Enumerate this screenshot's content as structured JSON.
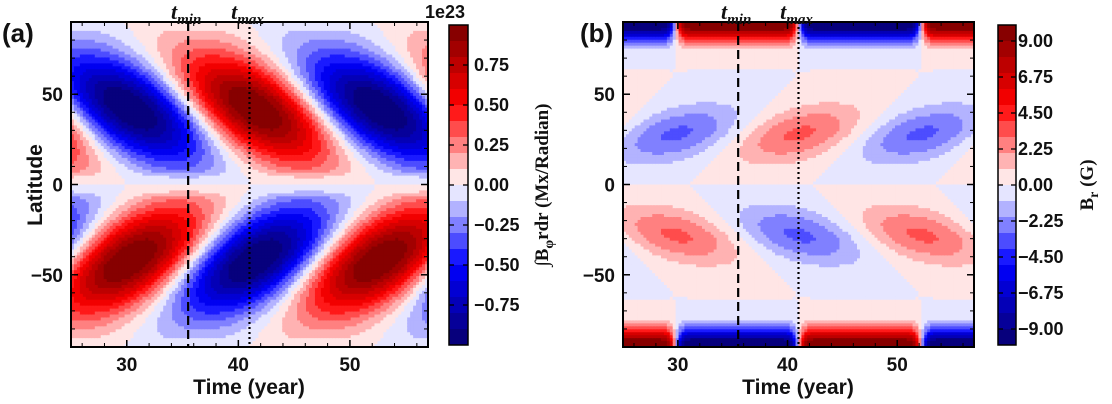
{
  "chart_data": [
    {
      "type": "heatmap",
      "panel_label": "(a)",
      "xlabel": "Time (year)",
      "ylabel": "Latitude",
      "xlim": [
        25,
        57
      ],
      "ylim": [
        -90,
        90
      ],
      "xticks": [
        "30",
        "40",
        "50"
      ],
      "yticks": [
        "50",
        "0",
        "−50"
      ],
      "vlines": [
        {
          "label": "t",
          "sub": "min",
          "x": 35.5,
          "style": "dashed"
        },
        {
          "label": "t",
          "sub": "max",
          "x": 41.0,
          "style": "dotted"
        }
      ],
      "colorbar": {
        "label": "∫Bφrdr (Mx/Radian)",
        "offset_text": "1e23",
        "range": [
          -1.0,
          1.0
        ],
        "levels": 20,
        "ticks": [
          "0.75",
          "0.50",
          "0.25",
          "0.00",
          "−0.25",
          "−0.50",
          "−0.75"
        ],
        "tick_values": [
          0.75,
          0.5,
          0.25,
          0.0,
          -0.25,
          -0.5,
          -0.75
        ],
        "colors": [
          "#08006e",
          "#0000ff",
          "#ffffff",
          "#ff0000",
          "#7a0000"
        ]
      },
      "field": {
        "kind": "toroidal",
        "period_years": 11.2,
        "min_phase_year": 35.5
      }
    },
    {
      "type": "heatmap",
      "panel_label": "(b)",
      "xlabel": "Time (year)",
      "ylabel": "",
      "xlim": [
        25,
        57
      ],
      "ylim": [
        -90,
        90
      ],
      "xticks": [
        "30",
        "40",
        "50"
      ],
      "yticks": [
        "50",
        "0",
        "−50"
      ],
      "vlines": [
        {
          "label": "t",
          "sub": "min",
          "x": 35.5,
          "style": "dashed"
        },
        {
          "label": "t",
          "sub": "max",
          "x": 41.0,
          "style": "dotted"
        }
      ],
      "colorbar": {
        "label": "Br (G)",
        "offset_text": "",
        "range": [
          -10.0,
          10.0
        ],
        "levels": 20,
        "ticks": [
          "9.00",
          "6.75",
          "4.50",
          "2.25",
          "0.00",
          "−2.25",
          "−4.50",
          "−6.75",
          "−9.00"
        ],
        "tick_values": [
          9.0,
          6.75,
          4.5,
          2.25,
          0.0,
          -2.25,
          -4.5,
          -6.75,
          -9.0
        ],
        "colors": [
          "#08006e",
          "#0000ff",
          "#ffffff",
          "#ff0000",
          "#7a0000"
        ]
      },
      "field": {
        "kind": "radial",
        "period_years": 11.2,
        "polar_reversal_year": 41.0
      }
    }
  ]
}
